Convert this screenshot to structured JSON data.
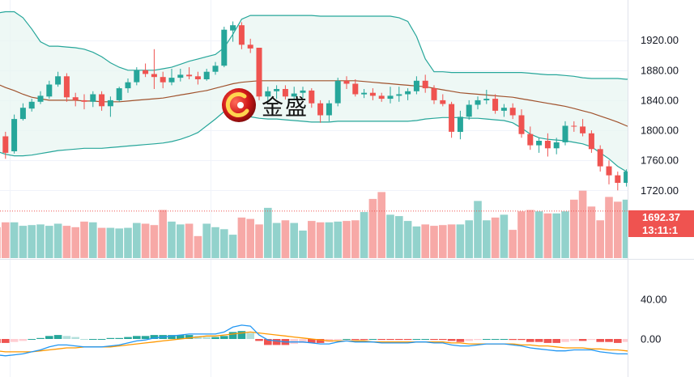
{
  "watermark": {
    "text": "金盛"
  },
  "price_badge": {
    "price": "1692.37",
    "countdown": "13:11:1"
  },
  "chart_data": [
    {
      "type": "candlestick",
      "panel": "price",
      "ylim": [
        1680,
        1960
      ],
      "y_ticks": [
        "1720.00",
        "1760.00",
        "1800.00",
        "1840.00",
        "1880.00",
        "1920.00"
      ],
      "up_color": "#26a69a",
      "down_color": "#ef5350",
      "last_price": 1692.37,
      "ohlc": [
        [
          1811,
          1818,
          1787,
          1793
        ],
        [
          1792,
          1798,
          1762,
          1770
        ],
        [
          1772,
          1821,
          1769,
          1815
        ],
        [
          1815,
          1836,
          1813,
          1830
        ],
        [
          1829,
          1842,
          1825,
          1838
        ],
        [
          1838,
          1852,
          1835,
          1846
        ],
        [
          1845,
          1866,
          1842,
          1861
        ],
        [
          1861,
          1878,
          1858,
          1872
        ],
        [
          1872,
          1876,
          1838,
          1844
        ],
        [
          1844,
          1850,
          1832,
          1840
        ],
        [
          1840,
          1848,
          1828,
          1838
        ],
        [
          1838,
          1852,
          1831,
          1848
        ],
        [
          1848,
          1852,
          1826,
          1832
        ],
        [
          1832,
          1845,
          1818,
          1840
        ],
        [
          1840,
          1858,
          1838,
          1856
        ],
        [
          1856,
          1869,
          1850,
          1864
        ],
        [
          1864,
          1884,
          1860,
          1880
        ],
        [
          1880,
          1889,
          1871,
          1875
        ],
        [
          1875,
          1908,
          1855,
          1871
        ],
        [
          1871,
          1878,
          1856,
          1864
        ],
        [
          1864,
          1882,
          1860,
          1870
        ],
        [
          1870,
          1882,
          1865,
          1874
        ],
        [
          1874,
          1884,
          1868,
          1872
        ],
        [
          1872,
          1878,
          1861,
          1868
        ],
        [
          1868,
          1882,
          1866,
          1878
        ],
        [
          1878,
          1891,
          1874,
          1886
        ],
        [
          1886,
          1938,
          1884,
          1934
        ],
        [
          1933,
          1945,
          1918,
          1940
        ],
        [
          1940,
          1944,
          1908,
          1914
        ],
        [
          1914,
          1922,
          1903,
          1909
        ],
        [
          1910,
          1910,
          1840,
          1845
        ],
        [
          1845,
          1858,
          1838,
          1852
        ],
        [
          1852,
          1860,
          1842,
          1855
        ],
        [
          1855,
          1860,
          1841,
          1845
        ],
        [
          1845,
          1858,
          1840,
          1849
        ],
        [
          1850,
          1858,
          1843,
          1853
        ],
        [
          1853,
          1856,
          1830,
          1836
        ],
        [
          1836,
          1840,
          1810,
          1820
        ],
        [
          1820,
          1840,
          1812,
          1836
        ],
        [
          1836,
          1870,
          1832,
          1866
        ],
        [
          1866,
          1872,
          1855,
          1862
        ],
        [
          1862,
          1868,
          1845,
          1848
        ],
        [
          1848,
          1855,
          1843,
          1850
        ],
        [
          1850,
          1856,
          1840,
          1846
        ],
        [
          1846,
          1850,
          1838,
          1842
        ],
        [
          1842,
          1858,
          1836,
          1846
        ],
        [
          1846,
          1858,
          1838,
          1848
        ],
        [
          1848,
          1856,
          1840,
          1852
        ],
        [
          1852,
          1872,
          1848,
          1866
        ],
        [
          1866,
          1874,
          1850,
          1856
        ],
        [
          1856,
          1860,
          1835,
          1840
        ],
        [
          1840,
          1848,
          1832,
          1835
        ],
        [
          1835,
          1838,
          1790,
          1798
        ],
        [
          1798,
          1826,
          1788,
          1818
        ],
        [
          1818,
          1840,
          1814,
          1834
        ],
        [
          1834,
          1845,
          1828,
          1840
        ],
        [
          1840,
          1854,
          1835,
          1842
        ],
        [
          1842,
          1848,
          1822,
          1826
        ],
        [
          1826,
          1835,
          1818,
          1830
        ],
        [
          1830,
          1836,
          1815,
          1820
        ],
        [
          1820,
          1828,
          1790,
          1795
        ],
        [
          1795,
          1805,
          1774,
          1780
        ],
        [
          1780,
          1790,
          1770,
          1786
        ],
        [
          1786,
          1796,
          1765,
          1776
        ],
        [
          1776,
          1790,
          1768,
          1784
        ],
        [
          1784,
          1812,
          1780,
          1806
        ],
        [
          1806,
          1812,
          1798,
          1805
        ],
        [
          1805,
          1815,
          1792,
          1796
        ],
        [
          1796,
          1800,
          1770,
          1775
        ],
        [
          1775,
          1780,
          1745,
          1752
        ],
        [
          1752,
          1760,
          1728,
          1740
        ],
        [
          1740,
          1745,
          1720,
          1730
        ],
        [
          1730,
          1748,
          1725,
          1745
        ],
        [
          1745,
          1748,
          1710,
          1716
        ],
        [
          1716,
          1720,
          1696,
          1700
        ],
        [
          1700,
          1704,
          1688,
          1692.37
        ]
      ],
      "bollinger": {
        "upper": [
          1956,
          1958,
          1958,
          1950,
          1935,
          1918,
          1912,
          1912,
          1911,
          1910,
          1908,
          1904,
          1898,
          1890,
          1884,
          1880,
          1880,
          1880,
          1880,
          1882,
          1884,
          1888,
          1892,
          1895,
          1898,
          1901,
          1910,
          1928,
          1948,
          1953,
          1953,
          1953,
          1953,
          1953,
          1953,
          1953,
          1953,
          1952,
          1952,
          1952,
          1952,
          1952,
          1952,
          1952,
          1952,
          1952,
          1950,
          1945,
          1925,
          1895,
          1878,
          1878,
          1877,
          1877,
          1877,
          1877,
          1877,
          1877,
          1877,
          1877,
          1877,
          1876,
          1875,
          1874,
          1874,
          1873,
          1872,
          1870,
          1869,
          1869,
          1869,
          1869,
          1868,
          1869,
          1872,
          1874
        ],
        "middle": [
          1862,
          1857,
          1853,
          1848,
          1844,
          1842,
          1840,
          1840,
          1840,
          1840,
          1839,
          1839,
          1838,
          1838,
          1838,
          1839,
          1840,
          1841,
          1842,
          1843,
          1845,
          1847,
          1849,
          1851,
          1853,
          1856,
          1859,
          1862,
          1864,
          1865,
          1866,
          1866,
          1866,
          1866,
          1866,
          1866,
          1866,
          1866,
          1866,
          1866,
          1866,
          1866,
          1865,
          1864,
          1863,
          1862,
          1861,
          1860,
          1859,
          1858,
          1856,
          1854,
          1852,
          1850,
          1849,
          1848,
          1847,
          1846,
          1845,
          1844,
          1842,
          1840,
          1838,
          1836,
          1834,
          1832,
          1829,
          1826,
          1823,
          1819,
          1815,
          1811,
          1806,
          1801,
          1796,
          1792
        ],
        "lower": [
          1772,
          1768,
          1766,
          1766,
          1767,
          1769,
          1771,
          1773,
          1774,
          1775,
          1776,
          1776,
          1776,
          1777,
          1778,
          1779,
          1780,
          1781,
          1782,
          1783,
          1785,
          1788,
          1792,
          1797,
          1806,
          1815,
          1825,
          1825,
          1822,
          1818,
          1816,
          1815,
          1815,
          1814,
          1813,
          1812,
          1811,
          1811,
          1811,
          1812,
          1812,
          1812,
          1812,
          1812,
          1812,
          1812,
          1812,
          1812,
          1813,
          1815,
          1816,
          1817,
          1817,
          1817,
          1816,
          1816,
          1815,
          1814,
          1813,
          1810,
          1803,
          1795,
          1790,
          1788,
          1787,
          1786,
          1784,
          1782,
          1778,
          1770,
          1762,
          1752,
          1745,
          1733,
          1718,
          1705
        ]
      }
    },
    {
      "type": "bar",
      "panel": "volume",
      "up_color": "#26a69a",
      "down_color": "#ef5350",
      "values": [
        45,
        52,
        52,
        47,
        48,
        49,
        47,
        50,
        47,
        45,
        53,
        52,
        44,
        44,
        43,
        44,
        51,
        50,
        48,
        70,
        53,
        49,
        50,
        32,
        50,
        45,
        42,
        34,
        59,
        57,
        49,
        73,
        51,
        55,
        51,
        40,
        54,
        52,
        52,
        53,
        54,
        55,
        67,
        86,
        96,
        63,
        61,
        54,
        46,
        49,
        47,
        48,
        49,
        49,
        55,
        83,
        55,
        59,
        63,
        41,
        68,
        70,
        68,
        65,
        65,
        68,
        85,
        98,
        75,
        55,
        89,
        82,
        85,
        62,
        57,
        26
      ]
    },
    {
      "type": "line",
      "panel": "macd",
      "y_ticks": [
        "0.00",
        "40.00"
      ],
      "ylim": [
        -20,
        60
      ],
      "macd": [
        -16,
        -17,
        -16,
        -15,
        -13,
        -11,
        -8,
        -6,
        -6,
        -7,
        -8,
        -8,
        -8,
        -7,
        -6,
        -4,
        -2,
        -1,
        1,
        2,
        3,
        4,
        5,
        5,
        5,
        5,
        7,
        12,
        14,
        13,
        4,
        -1,
        -2,
        -3,
        -3,
        -3,
        -4,
        -5,
        -5,
        -3,
        -2,
        -3,
        -3,
        -3,
        -4,
        -4,
        -4,
        -4,
        -3,
        -3,
        -4,
        -4,
        -6,
        -7,
        -7,
        -6,
        -5,
        -5,
        -5,
        -6,
        -7,
        -9,
        -10,
        -11,
        -12,
        -12,
        -11,
        -11,
        -11,
        -13,
        -14,
        -15,
        -15,
        -16,
        -17,
        -18
      ],
      "signal": [
        -12,
        -13,
        -13,
        -13,
        -13,
        -12,
        -11,
        -10,
        -9,
        -9,
        -8,
        -8,
        -8,
        -8,
        -7,
        -6,
        -5,
        -4,
        -3,
        -2,
        -1,
        0,
        1,
        2,
        3,
        3,
        4,
        5,
        6,
        7,
        6,
        5,
        4,
        3,
        2,
        1,
        0,
        -1,
        -2,
        -2,
        -2,
        -2,
        -2,
        -3,
        -3,
        -3,
        -3,
        -3,
        -3,
        -3,
        -3,
        -3,
        -4,
        -4,
        -5,
        -5,
        -5,
        -5,
        -5,
        -5,
        -6,
        -6,
        -7,
        -7,
        -8,
        -9,
        -9,
        -9,
        -10,
        -10,
        -11,
        -11,
        -12,
        -13,
        -14,
        -15
      ],
      "histogram": [
        -4,
        -4,
        -3,
        -2,
        0,
        1,
        3,
        4,
        3,
        2,
        0,
        0,
        0,
        1,
        1,
        2,
        3,
        3,
        4,
        4,
        4,
        4,
        4,
        3,
        2,
        2,
        3,
        7,
        8,
        6,
        -2,
        -6,
        -6,
        -6,
        -5,
        -4,
        -4,
        -4,
        -3,
        -1,
        0,
        -1,
        -1,
        0,
        -1,
        -1,
        -1,
        -1,
        0,
        0,
        -1,
        -1,
        -2,
        -3,
        -2,
        -1,
        0,
        0,
        0,
        -1,
        -1,
        -3,
        -3,
        -4,
        -4,
        -3,
        -2,
        -2,
        -1,
        -3,
        -3,
        -4,
        -3,
        -3,
        -3,
        -3
      ],
      "macd_color": "#2196f3",
      "signal_color": "#ff9800",
      "hist_up_dark": "#26a69a",
      "hist_up_light": "#b2dfdb",
      "hist_down_dark": "#ef5350",
      "hist_down_light": "#ffcdd2"
    }
  ]
}
